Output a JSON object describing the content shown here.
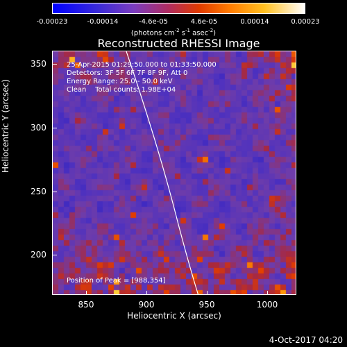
{
  "colorbar": {
    "ticks": [
      "-0.00023",
      "-0.00014",
      "-4.6e-05",
      "4.6e-05",
      "0.00014",
      "0.00023"
    ],
    "units_prefix": "(photons cm",
    "units_exp1": "-2",
    "units_mid": " s",
    "units_exp2": "-1",
    "units_mid2": " asec",
    "units_exp3": "-2",
    "units_suffix": ")"
  },
  "plot": {
    "title": "Reconstructed RHESSI Image",
    "info_line1": "25-Apr-2015 01:29:50.000 to 01:33:50.000",
    "info_line2": "Detectors: 3F 5F 6F 7F 8F 9F, Att 0",
    "info_line3": "Energy Range: 25.0 - 50.0 keV",
    "info_line4": "Clean    Total counts: 1.98E+04",
    "peak_label": "Position of Peak = [988,354]",
    "xlabel": "Heliocentric X (arcsec)",
    "ylabel": "Heliocentric Y (arcsec)",
    "xticks": [
      "850",
      "900",
      "950",
      "1000"
    ],
    "yticks": [
      "350",
      "300",
      "250",
      "200"
    ]
  },
  "timestamp": "4-Oct-2017 04:20"
}
